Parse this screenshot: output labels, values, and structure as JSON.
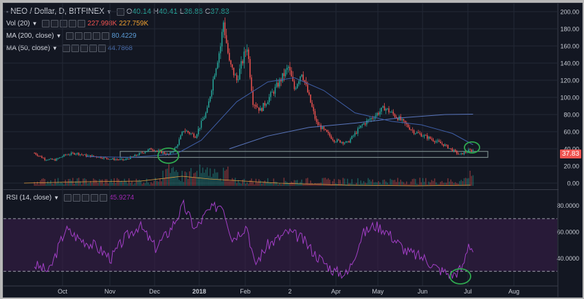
{
  "header": {
    "symbol": "NEO / Dollar, D, BITFINEX",
    "open_label": "O",
    "open": "40.14",
    "high_label": "H",
    "high": "40.41",
    "low_label": "L",
    "low": "36.86",
    "close_label": "C",
    "close": "37.83"
  },
  "indicators": [
    {
      "name": "Vol (20)",
      "values": [
        "227.998K",
        "227.759K"
      ],
      "colors": [
        "#ef5350",
        "#f0a030"
      ]
    },
    {
      "name": "MA (200, close)",
      "values": [
        "80.4229"
      ],
      "colors": [
        "#5b9bd5"
      ]
    },
    {
      "name": "MA (50, close)",
      "values": [
        "44.7868"
      ],
      "colors": [
        "#4a6fb0"
      ]
    }
  ],
  "rsi": {
    "name": "RSI (14, close)",
    "value": "45.9274",
    "color": "#9c27b0"
  },
  "price_tag": "37.83",
  "colors": {
    "up": "#26a69a",
    "down": "#ef5350",
    "ma200": "#5b78c0",
    "ma50": "#3f5fa8",
    "rsi": "#a33fc7",
    "annotation": "#2fa84f",
    "box": "#7a8a8a"
  },
  "chart_data": [
    {
      "type": "candlestick",
      "title": "NEO / Dollar, D, BITFINEX",
      "x_ticks": [
        "Oct",
        "Nov",
        "Dec",
        "2018",
        "Feb",
        "2",
        "Apr",
        "May",
        "Jun",
        "Jul",
        "Aug"
      ],
      "y_ticks": [
        "0.00",
        "20.00",
        "40.00",
        "60.00",
        "80.00",
        "100.00",
        "120.00",
        "140.00",
        "160.00",
        "180.00",
        "200.00"
      ],
      "ylim": [
        0,
        200
      ],
      "close_series": [
        [
          "2017-09-10",
          35
        ],
        [
          "2017-09-17",
          28
        ],
        [
          "2017-09-24",
          27
        ],
        [
          "2017-10-01",
          33
        ],
        [
          "2017-10-08",
          35
        ],
        [
          "2017-10-15",
          32
        ],
        [
          "2017-10-22",
          31
        ],
        [
          "2017-11-01",
          28
        ],
        [
          "2017-11-10",
          27
        ],
        [
          "2017-11-20",
          34
        ],
        [
          "2017-11-28",
          40
        ],
        [
          "2017-12-05",
          36
        ],
        [
          "2017-12-10",
          33
        ],
        [
          "2017-12-15",
          42
        ],
        [
          "2017-12-20",
          62
        ],
        [
          "2017-12-28",
          55
        ],
        [
          "2018-01-05",
          85
        ],
        [
          "2018-01-10",
          130
        ],
        [
          "2018-01-14",
          160
        ],
        [
          "2018-01-16",
          188
        ],
        [
          "2018-01-20",
          140
        ],
        [
          "2018-01-25",
          120
        ],
        [
          "2018-02-01",
          160
        ],
        [
          "2018-02-05",
          95
        ],
        [
          "2018-02-10",
          85
        ],
        [
          "2018-02-20",
          110
        ],
        [
          "2018-03-01",
          135
        ],
        [
          "2018-03-05",
          110
        ],
        [
          "2018-03-10",
          130
        ],
        [
          "2018-03-20",
          70
        ],
        [
          "2018-04-01",
          50
        ],
        [
          "2018-04-10",
          47
        ],
        [
          "2018-04-20",
          68
        ],
        [
          "2018-04-28",
          78
        ],
        [
          "2018-05-05",
          88
        ],
        [
          "2018-05-15",
          75
        ],
        [
          "2018-05-25",
          60
        ],
        [
          "2018-06-05",
          52
        ],
        [
          "2018-06-15",
          44
        ],
        [
          "2018-06-25",
          33
        ],
        [
          "2018-07-01",
          38
        ],
        [
          "2018-07-04",
          38
        ]
      ],
      "ma200_series": [
        [
          "2018-01-20",
          40
        ],
        [
          "2018-02-15",
          55
        ],
        [
          "2018-03-15",
          65
        ],
        [
          "2018-04-15",
          70
        ],
        [
          "2018-05-15",
          76
        ],
        [
          "2018-06-15",
          80
        ],
        [
          "2018-07-04",
          80.42
        ]
      ],
      "ma50_series": [
        [
          "2017-10-15",
          31
        ],
        [
          "2017-11-15",
          30
        ],
        [
          "2017-12-15",
          34
        ],
        [
          "2018-01-01",
          50
        ],
        [
          "2018-01-25",
          95
        ],
        [
          "2018-02-15",
          118
        ],
        [
          "2018-03-05",
          123
        ],
        [
          "2018-03-25",
          108
        ],
        [
          "2018-04-15",
          82
        ],
        [
          "2018-05-10",
          72
        ],
        [
          "2018-05-30",
          68
        ],
        [
          "2018-06-20",
          58
        ],
        [
          "2018-07-04",
          44.79
        ]
      ],
      "support_zone": [
        30,
        37
      ],
      "last_price": 37.83
    },
    {
      "type": "line",
      "title": "RSI (14, close)",
      "y_ticks": [
        "40.0000",
        "60.0000",
        "80.0000"
      ],
      "ylim": [
        20,
        85
      ],
      "bands": [
        30,
        70
      ],
      "series": [
        [
          "2017-09-10",
          35
        ],
        [
          "2017-09-20",
          30
        ],
        [
          "2017-10-01",
          62
        ],
        [
          "2017-10-10",
          55
        ],
        [
          "2017-10-20",
          50
        ],
        [
          "2017-11-01",
          40
        ],
        [
          "2017-11-10",
          55
        ],
        [
          "2017-11-20",
          65
        ],
        [
          "2017-12-01",
          48
        ],
        [
          "2017-12-10",
          60
        ],
        [
          "2017-12-20",
          80
        ],
        [
          "2017-12-28",
          62
        ],
        [
          "2018-01-05",
          75
        ],
        [
          "2018-01-15",
          82
        ],
        [
          "2018-01-22",
          55
        ],
        [
          "2018-02-01",
          65
        ],
        [
          "2018-02-06",
          35
        ],
        [
          "2018-02-15",
          50
        ],
        [
          "2018-03-01",
          60
        ],
        [
          "2018-03-10",
          55
        ],
        [
          "2018-03-20",
          42
        ],
        [
          "2018-04-01",
          30
        ],
        [
          "2018-04-10",
          28
        ],
        [
          "2018-04-20",
          58
        ],
        [
          "2018-04-28",
          65
        ],
        [
          "2018-05-05",
          62
        ],
        [
          "2018-05-20",
          45
        ],
        [
          "2018-06-01",
          40
        ],
        [
          "2018-06-10",
          32
        ],
        [
          "2018-06-20",
          27
        ],
        [
          "2018-06-27",
          33
        ],
        [
          "2018-07-01",
          52
        ],
        [
          "2018-07-04",
          46
        ]
      ]
    }
  ]
}
